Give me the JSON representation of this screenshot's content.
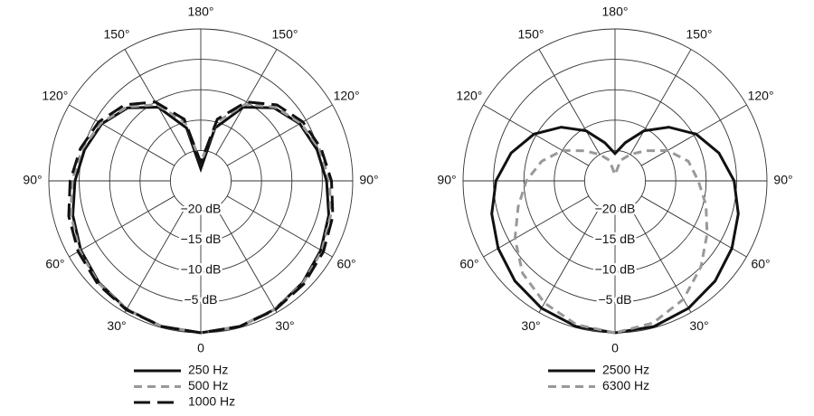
{
  "chart_data": [
    {
      "type": "polar",
      "x": [
        0,
        15,
        30,
        45,
        60,
        75,
        90,
        105,
        120,
        135,
        150,
        165,
        180,
        195,
        210,
        225,
        240,
        255,
        270,
        285,
        300,
        315,
        330,
        345,
        360
      ],
      "xticks": [
        0,
        {
          "value": 30,
          "label": "30°"
        },
        {
          "value": 60,
          "label": "60°"
        },
        {
          "value": 90,
          "label": "90°"
        },
        {
          "value": 120,
          "label": "120°"
        },
        {
          "value": 150,
          "label": "150°"
        },
        {
          "value": 180,
          "label": "180°"
        },
        {
          "value": 210,
          "label": "150°"
        },
        {
          "value": 240,
          "label": "120°"
        },
        {
          "value": 270,
          "label": "90°"
        },
        {
          "value": 300,
          "label": "60°"
        },
        {
          "value": 330,
          "label": "30°"
        }
      ],
      "ylim": [
        -25,
        0
      ],
      "yticks": [
        {
          "value": -20,
          "label": "−20 dB"
        },
        {
          "value": -15,
          "label": "−15 dB"
        },
        {
          "value": -10,
          "label": "−10 dB"
        },
        {
          "value": -5,
          "label": "−5 dB"
        },
        0
      ],
      "grid": true,
      "series": [
        {
          "name": "250 Hz",
          "color": "#111111",
          "dash": "solid",
          "values": [
            0,
            -0.2,
            -0.6,
            -1.3,
            -2.2,
            -3.2,
            -4.3,
            -5.2,
            -6.2,
            -8,
            -11,
            -16,
            -23,
            -16,
            -11,
            -8,
            -6.2,
            -5.2,
            -4.3,
            -3.2,
            -2.2,
            -1.3,
            -0.6,
            -0.2,
            0
          ]
        },
        {
          "name": "500 Hz",
          "color": "#999999",
          "dash": "dashed",
          "values": [
            0,
            -0.2,
            -0.6,
            -1.2,
            -2,
            -2.9,
            -3.8,
            -4.8,
            -6,
            -7.8,
            -10.5,
            -15,
            -22,
            -15,
            -10.5,
            -7.8,
            -6,
            -4.8,
            -3.8,
            -2.9,
            -2,
            -1.2,
            -0.6,
            -0.2,
            0
          ]
        },
        {
          "name": "1000 Hz",
          "color": "#111111",
          "dash": "long-dash",
          "values": [
            0,
            -0.2,
            -0.5,
            -1,
            -1.7,
            -2.5,
            -3.5,
            -4.5,
            -5.6,
            -7.3,
            -10,
            -14.5,
            -22,
            -14.5,
            -10,
            -7.3,
            -5.6,
            -4.5,
            -3.5,
            -2.5,
            -1.7,
            -1,
            -0.5,
            -0.2,
            0
          ]
        }
      ]
    },
    {
      "type": "polar",
      "x": [
        0,
        15,
        30,
        45,
        60,
        75,
        90,
        105,
        120,
        135,
        150,
        165,
        180,
        195,
        210,
        225,
        240,
        255,
        270,
        285,
        300,
        315,
        330,
        345,
        360
      ],
      "xticks": [
        0,
        {
          "value": 30,
          "label": "30°"
        },
        {
          "value": 60,
          "label": "60°"
        },
        {
          "value": 90,
          "label": "90°"
        },
        {
          "value": 120,
          "label": "120°"
        },
        {
          "value": 150,
          "label": "150°"
        },
        {
          "value": 180,
          "label": "180°"
        },
        {
          "value": 210,
          "label": "150°"
        },
        {
          "value": 240,
          "label": "120°"
        },
        {
          "value": 270,
          "label": "90°"
        },
        {
          "value": 300,
          "label": "60°"
        },
        {
          "value": 330,
          "label": "30°"
        }
      ],
      "ylim": [
        -25,
        0
      ],
      "yticks": [
        {
          "value": -20,
          "label": "−20 dB"
        },
        {
          "value": -15,
          "label": "−15 dB"
        },
        {
          "value": -10,
          "label": "−10 dB"
        },
        {
          "value": -5,
          "label": "−5 dB"
        },
        0
      ],
      "grid": true,
      "series": [
        {
          "name": "2500 Hz",
          "color": "#111111",
          "dash": "solid",
          "values": [
            0,
            -0.2,
            -0.8,
            -1.7,
            -2.8,
            -4,
            -5.4,
            -7.3,
            -9.6,
            -12.5,
            -15.5,
            -18.5,
            -20.5,
            -18.5,
            -15.5,
            -12.5,
            -9.6,
            -7.3,
            -5.4,
            -4,
            -2.8,
            -1.7,
            -0.8,
            -0.2,
            0
          ]
        },
        {
          "name": "6300 Hz",
          "color": "#999999",
          "dash": "dashed",
          "values": [
            0,
            -0.5,
            -1.8,
            -3.5,
            -6,
            -8.5,
            -10.4,
            -12.5,
            -15,
            -18,
            -20,
            -21.5,
            -24,
            -21.5,
            -20,
            -18,
            -15,
            -12.5,
            -11.3,
            -9.5,
            -7.5,
            -5,
            -2.5,
            -0.8,
            0
          ]
        }
      ]
    }
  ]
}
